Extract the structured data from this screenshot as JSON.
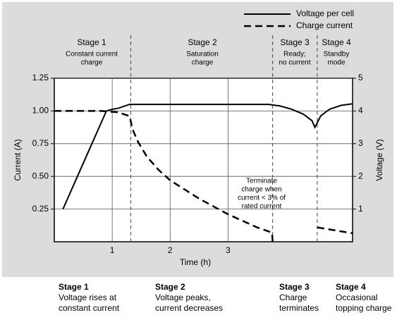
{
  "chart_data": {
    "type": "line",
    "legend_position": "top-right",
    "grid": true,
    "xlabel": "Time (h)",
    "ylabel": "Current (A)",
    "y2label": "Voltage (V)",
    "xlim": [
      0,
      5.15
    ],
    "xticks": [
      1,
      2,
      3
    ],
    "ylim": [
      0,
      1.25
    ],
    "yticks": [
      0.25,
      {
        "value": 0.5,
        "label": "0.50"
      },
      0.75,
      {
        "value": 1,
        "label": "1.00"
      },
      1.25
    ],
    "y2lim": [
      0,
      5
    ],
    "y2ticks": [
      1,
      2,
      3,
      4,
      5
    ],
    "stage_boundaries": [
      1.32,
      3.77,
      4.54
    ],
    "stages": [
      {
        "title": "Stage 1",
        "lines": [
          "Constant current",
          "charge"
        ]
      },
      {
        "title": "Stage 2",
        "lines": [
          "Saturation",
          "charge"
        ]
      },
      {
        "title": "Stage 3",
        "lines": [
          "Ready;",
          "no current"
        ]
      },
      {
        "title": "Stage 4",
        "lines": [
          "Standby",
          "mode"
        ]
      }
    ],
    "annotation": [
      "Terminate",
      "charge when",
      "current < 3% of",
      "rated current"
    ],
    "captions": [
      {
        "title": "Stage 1",
        "lines": [
          "Voltage rises at",
          "constant current"
        ]
      },
      {
        "title": "Stage 2",
        "lines": [
          "Voltage peaks,",
          "current decreases"
        ]
      },
      {
        "title": "Stage 3",
        "lines": [
          "Charge",
          "terminates"
        ]
      },
      {
        "title": "Stage 4",
        "lines": [
          "Occasional",
          "topping charge"
        ]
      }
    ],
    "series": [
      {
        "name": "Voltage per cell",
        "color": "#000000",
        "style": "solid",
        "axis": "y2",
        "x": [
          0.15,
          0.9,
          1.0,
          1.1,
          1.3,
          2.0,
          3.0,
          3.7,
          3.9,
          4.1,
          4.3,
          4.45,
          4.5,
          4.6,
          4.75,
          4.95,
          5.15
        ],
        "values": [
          1,
          4,
          4.05,
          4.08,
          4.2,
          4.2,
          4.2,
          4.2,
          4.15,
          4.05,
          3.9,
          3.7,
          3.5,
          3.85,
          4.05,
          4.17,
          4.22
        ]
      },
      {
        "name": "Charge current",
        "color": "#000000",
        "style": "dashed",
        "x": [
          0,
          0.8,
          1.1,
          1.3,
          1.35,
          1.45,
          1.6,
          1.8,
          2.0,
          2.5,
          3.0,
          3.5,
          3.76,
          3.77,
          4.0,
          4.54,
          5.15
        ],
        "values": [
          1,
          1,
          0.99,
          0.96,
          0.86,
          0.76,
          0.65,
          0.55,
          0.47,
          0.33,
          0.21,
          0.11,
          0.07,
          0,
          null,
          0.11,
          0.065
        ]
      }
    ]
  }
}
